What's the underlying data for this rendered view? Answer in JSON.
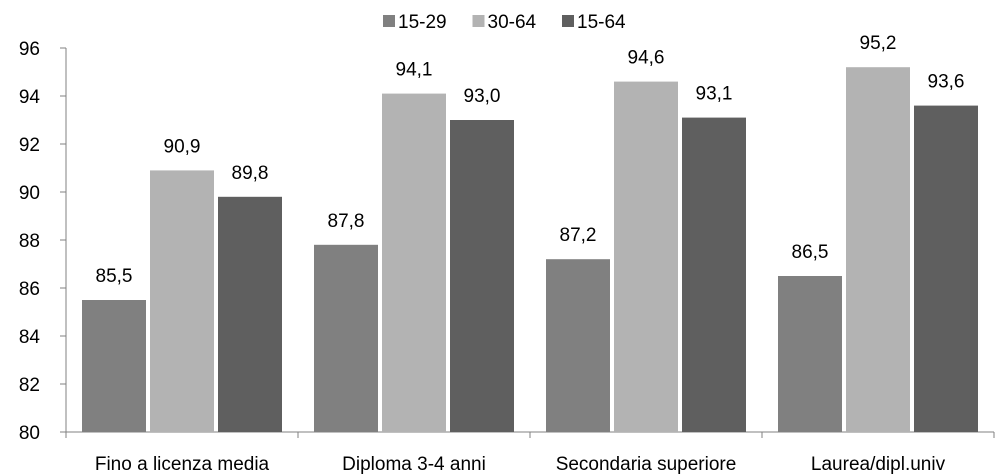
{
  "chart_data": {
    "type": "bar",
    "categories": [
      "Fino a licenza media",
      "Diploma 3-4 anni",
      "Secondaria superiore",
      "Laurea/dipl.univ"
    ],
    "series": [
      {
        "name": "15-29",
        "values": [
          85.5,
          87.8,
          87.2,
          86.5
        ],
        "color": "#808080"
      },
      {
        "name": "30-64",
        "values": [
          90.9,
          94.1,
          94.6,
          95.2
        ],
        "color": "#b3b3b3"
      },
      {
        "name": "15-64",
        "values": [
          89.8,
          93.0,
          93.1,
          93.6
        ],
        "color": "#5f5f5f"
      }
    ],
    "value_labels": [
      [
        "85,5",
        "87,8",
        "87,2",
        "86,5"
      ],
      [
        "90,9",
        "94,1",
        "94,6",
        "95,2"
      ],
      [
        "89,8",
        "93,0",
        "93,1",
        "93,6"
      ]
    ],
    "y_ticks": [
      "80",
      "82",
      "84",
      "86",
      "88",
      "90",
      "92",
      "94",
      "96"
    ],
    "ylim": [
      80,
      96
    ],
    "legend_position": "top",
    "grid": false
  }
}
